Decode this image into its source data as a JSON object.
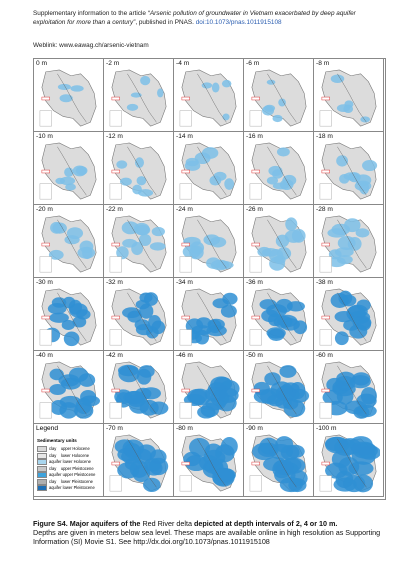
{
  "header": {
    "intro": "Supplementary information to the article ",
    "article_title": "“Arsenic pollution of groundwater in Vietnam exacerbated by deep aquifer exploitation for more than a century”",
    "published": ", published in PNAS. ",
    "doi": "doi:10.1073/pnas.1011915108",
    "weblink": "Weblink: www.eawag.ch/arsenic-vietnam"
  },
  "maps": [
    "0 m",
    "-2 m",
    "-4 m",
    "-6 m",
    "-8 m",
    "-10 m",
    "-12 m",
    "-14 m",
    "-16 m",
    "-18 m",
    "-20 m",
    "-22 m",
    "-24 m",
    "-26 m",
    "-28 m",
    "-30 m",
    "-32 m",
    "-34 m",
    "-36 m",
    "-38 m",
    "-40 m",
    "-42 m",
    "-46 m",
    "-50 m",
    "-60 m",
    "-70 m",
    "-80 m",
    "-90 m",
    "-100 m"
  ],
  "legend": {
    "title": "Legend",
    "subtitle": "Sedimentary units",
    "items": [
      {
        "label": "clay    upper Holocene",
        "color": "#d9d9d9"
      },
      {
        "label": "clay    lower Holocene",
        "color": "#e8e8e8"
      },
      {
        "label": "aquifer lower Holocene",
        "color": "#a9d6ee"
      },
      {
        "label": "clay    upper Pleistocene",
        "color": "#c8c8c8"
      },
      {
        "label": "aquifer upper Pleistocene",
        "color": "#3ea3dc"
      },
      {
        "label": "clay    lower Pleistocene",
        "color": "#b0b0b0"
      },
      {
        "label": "aquifer lower Pleistocene",
        "color": "#1f6fb5"
      }
    ]
  },
  "caption": {
    "bold1": "Figure S4. Major aquifers of the ",
    "normal1": "Red River delta ",
    "bold2": "depicted at depth intervals of 2, 4 or 10 m.",
    "line2": "Depths are given in meters below sea level. These maps are available online in high resolution as Supporting Information (SI) Movie S1. See http://dx.doi.org/10.1073/pnas.1011915108"
  }
}
